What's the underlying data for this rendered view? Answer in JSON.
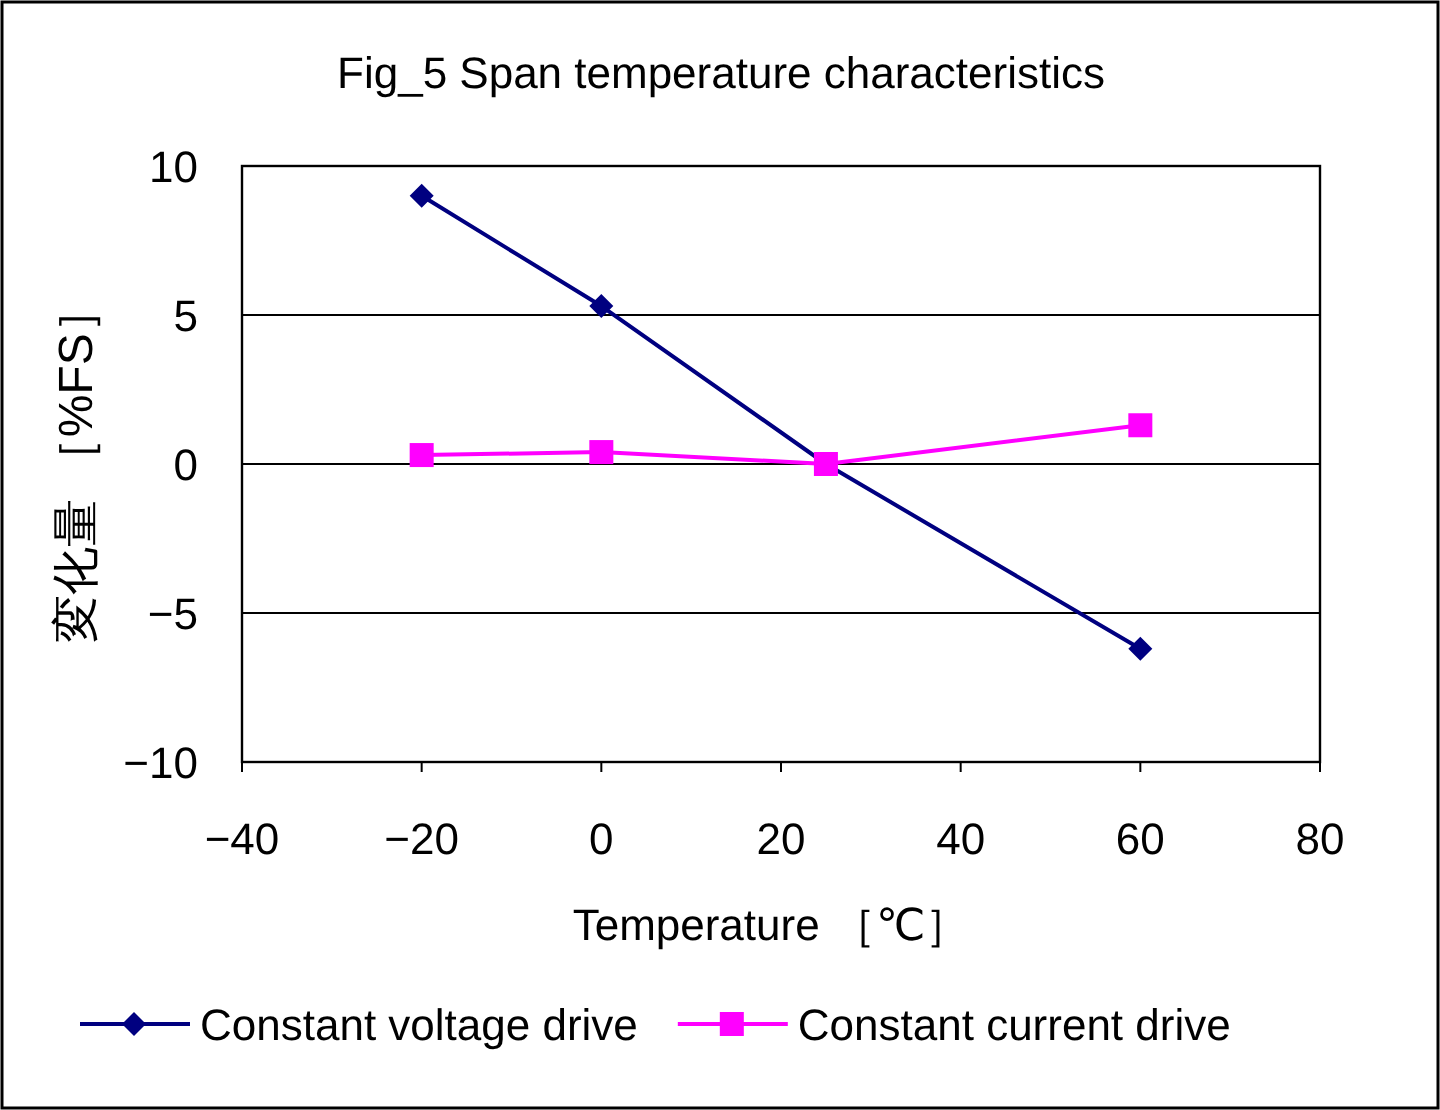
{
  "chart_data": {
    "type": "line",
    "title": "Fig_5  Span temperature characteristics",
    "xlabel": "Temperature ［℃］",
    "ylabel": "変化量 ［%FS］",
    "x": [
      -20,
      0,
      25,
      60
    ],
    "series": [
      {
        "name": "Constant voltage drive",
        "color": "#000080",
        "marker": "diamond",
        "values": [
          9.0,
          5.3,
          0,
          -6.2
        ]
      },
      {
        "name": "Constant current drive",
        "color": "#ff00ff",
        "marker": "square",
        "values": [
          0.3,
          0.4,
          0,
          1.3
        ]
      }
    ],
    "xlim": [
      -40,
      80
    ],
    "xticks": [
      {
        "value": -40,
        "label": "−40"
      },
      {
        "value": -20,
        "label": "−20"
      },
      0,
      20,
      40,
      60,
      80
    ],
    "ylim": [
      -10,
      10
    ],
    "yticks": [
      {
        "value": -10,
        "label": "−10"
      },
      {
        "value": -5,
        "label": "−5"
      },
      0,
      5,
      10
    ],
    "grid": "y",
    "legend": "bottom"
  }
}
